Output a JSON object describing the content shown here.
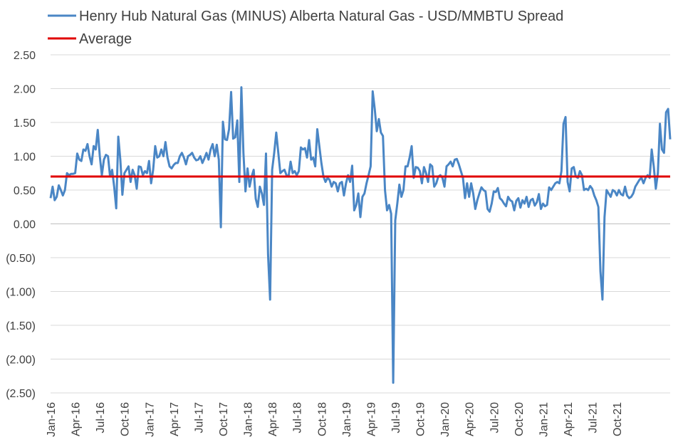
{
  "chart_data": {
    "type": "line",
    "title": "",
    "xlabel": "",
    "ylabel": "",
    "ylim": [
      -2.5,
      2.5
    ],
    "y_ticks": [
      2.5,
      2.0,
      1.5,
      1.0,
      0.5,
      0.0,
      -0.5,
      -1.0,
      -1.5,
      -2.0,
      -2.5
    ],
    "y_tick_labels": [
      "2.50",
      "2.00",
      "1.50",
      "1.00",
      "0.50",
      "0.00",
      "(0.50)",
      "(1.00)",
      "(1.50)",
      "(2.00)",
      "(2.50)"
    ],
    "x_tick_labels": [
      "Jan-16",
      "Apr-16",
      "Jul-16",
      "Oct-16",
      "Jan-17",
      "Apr-17",
      "Jul-17",
      "Oct-17",
      "Jan-18",
      "Apr-18",
      "Jul-18",
      "Oct-18",
      "Jan-19",
      "Apr-19",
      "Jul-19",
      "Oct-19",
      "Jan-20",
      "Apr-20",
      "Jul-20",
      "Oct-20",
      "Jan-21",
      "Apr-21",
      "Jul-21",
      "Oct-21"
    ],
    "grid": "horizontal",
    "legend_position": "top-left",
    "colors": {
      "spread": "#4a86c5",
      "average": "#e00000",
      "grid": "#d9d9d9",
      "axis": "#bfbfbf"
    },
    "series": [
      {
        "name": "Henry Hub Natural Gas (MINUS) Alberta Natural Gas - USD/MMBTU Spread",
        "x_start": "Jan-16",
        "points_per_month": 4,
        "values": [
          0.38,
          0.55,
          0.35,
          0.4,
          0.57,
          0.5,
          0.42,
          0.5,
          0.75,
          0.72,
          0.74,
          0.74,
          0.75,
          1.04,
          0.95,
          0.93,
          1.1,
          1.08,
          1.18,
          1.0,
          0.88,
          1.15,
          1.1,
          1.39,
          1.0,
          0.72,
          0.95,
          1.02,
          1.0,
          0.7,
          0.8,
          0.55,
          0.23,
          1.29,
          0.95,
          0.43,
          0.75,
          0.8,
          0.85,
          0.62,
          0.8,
          0.72,
          0.52,
          0.85,
          0.84,
          0.72,
          0.78,
          0.75,
          0.93,
          0.6,
          0.8,
          1.15,
          0.98,
          1.0,
          1.1,
          1.0,
          1.21,
          0.98,
          0.85,
          0.82,
          0.87,
          0.9,
          0.9,
          1.0,
          1.05,
          0.98,
          0.88,
          1.0,
          1.02,
          1.05,
          0.98,
          0.94,
          0.95,
          1.0,
          0.9,
          0.97,
          1.05,
          0.95,
          1.1,
          1.18,
          1.0,
          1.17,
          0.95,
          -0.05,
          1.51,
          1.25,
          1.24,
          1.4,
          1.95,
          1.26,
          1.28,
          1.53,
          0.62,
          2.02,
          1.05,
          0.48,
          0.82,
          0.55,
          0.7,
          0.8,
          0.37,
          0.25,
          0.55,
          0.45,
          0.28,
          1.04,
          -0.45,
          -1.12,
          0.8,
          1.05,
          1.35,
          1.05,
          0.75,
          0.78,
          0.8,
          0.72,
          0.7,
          0.92,
          0.75,
          0.78,
          0.72,
          0.78,
          1.13,
          1.1,
          1.12,
          0.98,
          1.24,
          0.95,
          0.98,
          0.85,
          1.4,
          1.15,
          0.9,
          0.7,
          0.62,
          0.68,
          0.65,
          0.55,
          0.62,
          0.6,
          0.48,
          0.6,
          0.62,
          0.42,
          0.6,
          0.72,
          0.62,
          0.86,
          0.2,
          0.28,
          0.45,
          0.1,
          0.4,
          0.45,
          0.6,
          0.72,
          0.85,
          1.96,
          1.7,
          1.37,
          1.55,
          1.35,
          1.3,
          0.5,
          0.2,
          0.28,
          0.15,
          -2.35,
          0.05,
          0.3,
          0.58,
          0.4,
          0.5,
          0.85,
          0.85,
          0.98,
          1.15,
          0.68,
          0.84,
          0.83,
          0.78,
          0.6,
          0.84,
          0.75,
          0.62,
          0.88,
          0.85,
          0.55,
          0.6,
          0.7,
          0.72,
          0.68,
          0.55,
          0.85,
          0.88,
          0.92,
          0.85,
          0.95,
          0.96,
          0.88,
          0.78,
          0.68,
          0.38,
          0.6,
          0.4,
          0.6,
          0.45,
          0.22,
          0.35,
          0.45,
          0.54,
          0.5,
          0.48,
          0.22,
          0.18,
          0.3,
          0.48,
          0.47,
          0.53,
          0.38,
          0.35,
          0.3,
          0.26,
          0.4,
          0.35,
          0.33,
          0.2,
          0.34,
          0.38,
          0.24,
          0.35,
          0.3,
          0.4,
          0.25,
          0.35,
          0.37,
          0.27,
          0.32,
          0.44,
          0.22,
          0.3,
          0.26,
          0.28,
          0.54,
          0.5,
          0.55,
          0.6,
          0.62,
          0.6,
          0.78,
          1.48,
          1.58,
          0.62,
          0.48,
          0.82,
          0.84,
          0.7,
          0.68,
          0.78,
          0.72,
          0.5,
          0.52,
          0.5,
          0.56,
          0.52,
          0.42,
          0.35,
          0.25,
          -0.7,
          -1.12,
          0.1,
          0.5,
          0.45,
          0.4,
          0.5,
          0.48,
          0.42,
          0.5,
          0.44,
          0.42,
          0.55,
          0.42,
          0.38,
          0.4,
          0.45,
          0.55,
          0.6,
          0.65,
          0.68,
          0.6,
          0.68,
          0.72,
          0.68,
          1.1,
          0.85,
          0.52,
          0.75,
          1.48,
          1.1,
          1.05,
          1.65,
          1.7,
          1.25
        ]
      },
      {
        "name": "Average",
        "values": [
          0.7,
          0.7
        ]
      }
    ]
  }
}
